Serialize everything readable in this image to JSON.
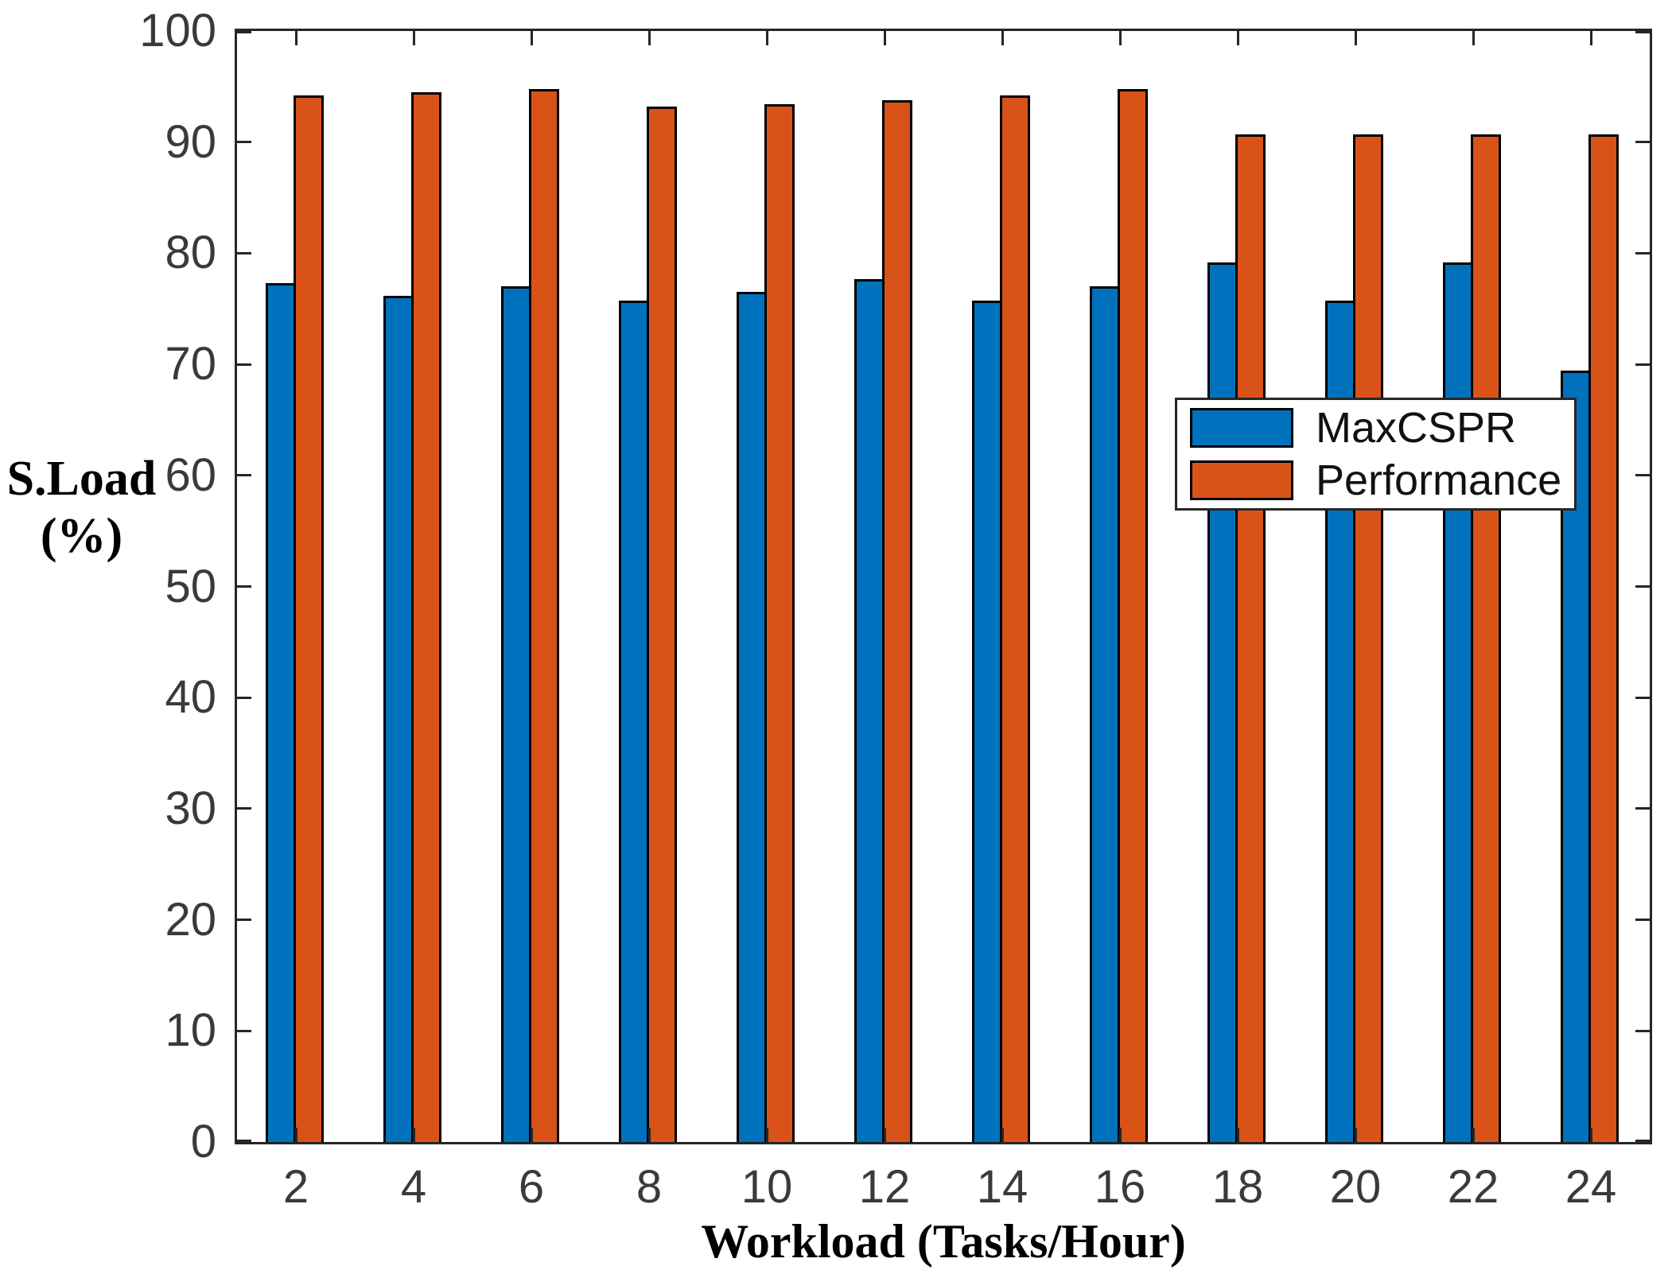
{
  "chart_data": {
    "type": "bar",
    "title": "",
    "xlabel": "Workload (Tasks/Hour)",
    "ylabel": "S.Load (%)",
    "ylabel_lines": [
      "S.Load",
      "(%)"
    ],
    "categories": [
      "2",
      "4",
      "6",
      "8",
      "10",
      "12",
      "14",
      "16",
      "18",
      "20",
      "22",
      "24"
    ],
    "series": [
      {
        "name": "MaxCSPR",
        "color": "#0072BD",
        "values": [
          77.3,
          76.2,
          77.0,
          75.7,
          76.5,
          77.7,
          75.7,
          77.0,
          79.2,
          75.7,
          79.2,
          69.4
        ]
      },
      {
        "name": "Performance",
        "color": "#D95319",
        "values": [
          94.2,
          94.5,
          94.8,
          93.2,
          93.4,
          93.8,
          94.2,
          94.8,
          90.7,
          90.7,
          90.7,
          90.7
        ]
      }
    ],
    "ylim": [
      0,
      100
    ],
    "yticks": [
      0,
      10,
      20,
      30,
      40,
      50,
      60,
      70,
      80,
      90,
      100
    ],
    "grid": false,
    "legend_position": "upper-right-inside",
    "axis_color": "#262626",
    "bar_edge_color": "#000000",
    "tick_label_color": "#3a3a3a"
  },
  "legend": {
    "items": [
      {
        "label": "MaxCSPR",
        "color": "#0072BD"
      },
      {
        "label": "Performance",
        "color": "#D95319"
      }
    ]
  }
}
